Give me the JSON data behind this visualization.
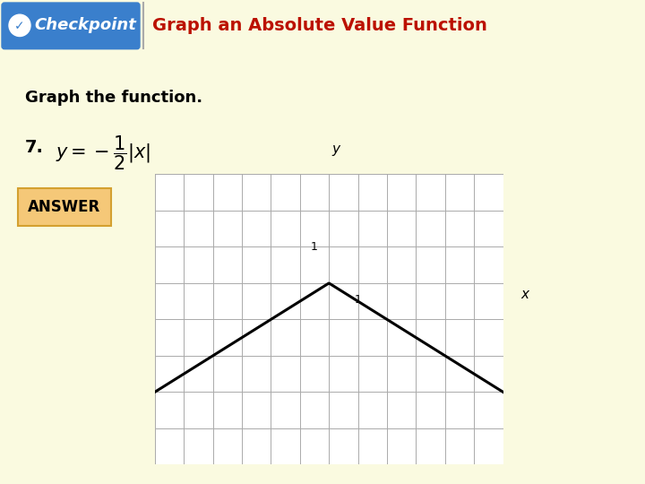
{
  "bg_color": "#FAFAE0",
  "header_bg": "#EBEBC0",
  "checkpoint_bg": "#3A7FCC",
  "checkpoint_text": "Checkpoint",
  "checkpoint_text_color": "#FFFFFF",
  "header_title": "Graph an Absolute Value Function",
  "header_title_color": "#BB1100",
  "body_text1": "Graph the function.",
  "problem_number": "7.",
  "answer_label": "ANSWER",
  "answer_bg": "#F5C878",
  "answer_border": "#D4A030",
  "graph_bg": "#FFFFFF",
  "graph_grid_color": "#AAAAAA",
  "graph_line_color": "#000000",
  "graph_axis_color": "#000000",
  "xlim": [
    -6,
    6
  ],
  "ylim": [
    -5,
    3
  ],
  "x_label": "x",
  "y_label": "y"
}
